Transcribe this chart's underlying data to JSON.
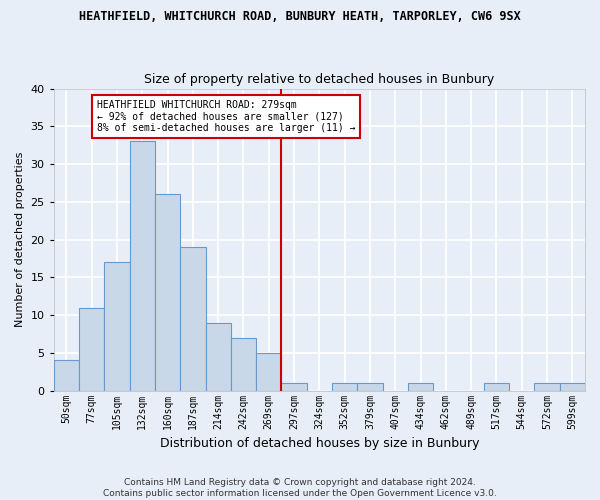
{
  "title": "HEATHFIELD, WHITCHURCH ROAD, BUNBURY HEATH, TARPORLEY, CW6 9SX",
  "subtitle": "Size of property relative to detached houses in Bunbury",
  "xlabel": "Distribution of detached houses by size in Bunbury",
  "ylabel": "Number of detached properties",
  "footer_line1": "Contains HM Land Registry data © Crown copyright and database right 2024.",
  "footer_line2": "Contains public sector information licensed under the Open Government Licence v3.0.",
  "bin_labels": [
    "50sqm",
    "77sqm",
    "105sqm",
    "132sqm",
    "160sqm",
    "187sqm",
    "214sqm",
    "242sqm",
    "269sqm",
    "297sqm",
    "324sqm",
    "352sqm",
    "379sqm",
    "407sqm",
    "434sqm",
    "462sqm",
    "489sqm",
    "517sqm",
    "544sqm",
    "572sqm",
    "599sqm"
  ],
  "bar_values": [
    4,
    11,
    17,
    33,
    26,
    19,
    9,
    7,
    5,
    1,
    0,
    1,
    1,
    0,
    1,
    0,
    0,
    1,
    0,
    1,
    1
  ],
  "bar_color": "#c8d8e8",
  "bar_edge_color": "#6699cc",
  "background_color": "#e8eef8",
  "grid_color": "#ffffff",
  "property_bin_index": 8,
  "annotation_line1": "HEATHFIELD WHITCHURCH ROAD: 279sqm",
  "annotation_line2": "← 92% of detached houses are smaller (127)",
  "annotation_line3": "8% of semi-detached houses are larger (11) →",
  "annotation_box_color": "#ffffff",
  "annotation_box_edge": "#cc0000",
  "vline_color": "#cc0000",
  "ylim": [
    0,
    40
  ],
  "yticks": [
    0,
    5,
    10,
    15,
    20,
    25,
    30,
    35,
    40
  ]
}
